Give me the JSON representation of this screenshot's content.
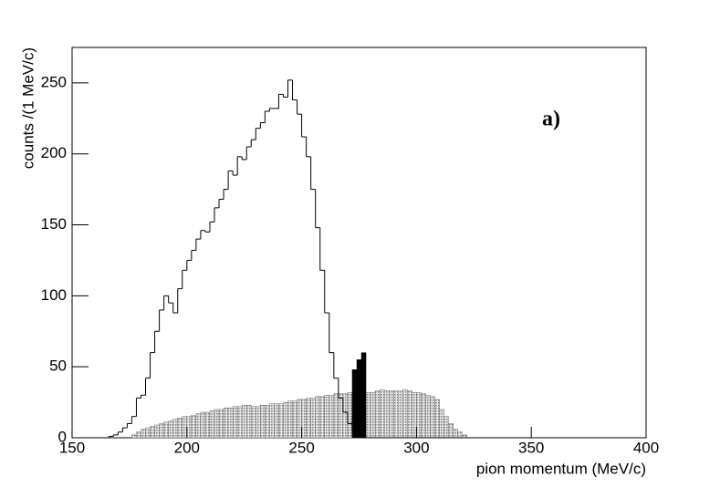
{
  "chart_data": {
    "type": "histogram",
    "x_label": "pion momentum (MeV/c)",
    "y_label": "counts /(1 MeV/c)",
    "annotation": "a)",
    "xlim": [
      150,
      400
    ],
    "ylim": [
      0,
      275
    ],
    "xticks": [
      150,
      200,
      250,
      300,
      350,
      400
    ],
    "yticks": [
      0,
      50,
      100,
      150,
      200,
      250
    ],
    "bins": [
      164,
      166,
      168,
      170,
      172,
      174,
      176,
      178,
      180,
      182,
      184,
      186,
      188,
      190,
      192,
      194,
      196,
      198,
      200,
      202,
      204,
      206,
      208,
      210,
      212,
      214,
      216,
      218,
      220,
      222,
      224,
      226,
      228,
      230,
      232,
      234,
      236,
      238,
      240,
      242,
      244,
      246,
      248,
      250,
      252,
      254,
      256,
      258,
      260,
      262,
      264,
      266,
      268,
      270,
      272,
      274,
      276,
      278,
      280,
      282,
      284,
      286,
      288,
      290,
      292,
      294,
      296,
      298,
      300,
      302,
      304,
      306,
      308,
      310,
      312,
      314,
      316,
      318,
      320,
      322
    ],
    "series": [
      {
        "style": "outline",
        "color": "#000000",
        "values": [
          0,
          1,
          2,
          4,
          7,
          10,
          15,
          28,
          30,
          42,
          60,
          75,
          90,
          100,
          95,
          88,
          105,
          118,
          125,
          132,
          140,
          146,
          145,
          152,
          162,
          168,
          175,
          188,
          185,
          198,
          196,
          205,
          210,
          218,
          222,
          230,
          232,
          232,
          242,
          240,
          252,
          238,
          228,
          212,
          198,
          175,
          148,
          118,
          88,
          60,
          42,
          28,
          18,
          10,
          5,
          2,
          0,
          0,
          0,
          0,
          0,
          0,
          0,
          0,
          0,
          0,
          0,
          0,
          0,
          0,
          0,
          0,
          0,
          0,
          0,
          0,
          0,
          0,
          0
        ]
      },
      {
        "style": "hatched",
        "color": "#b5b5b5",
        "values": [
          0,
          0,
          0,
          0,
          0,
          0,
          2,
          4,
          6,
          7,
          8,
          9,
          10,
          11,
          12,
          13,
          14,
          15,
          15,
          16,
          17,
          18,
          18,
          19,
          20,
          20,
          21,
          21,
          22,
          22,
          23,
          23,
          22,
          22,
          23,
          23,
          24,
          24,
          24,
          25,
          26,
          26,
          27,
          27,
          28,
          28,
          29,
          29,
          30,
          30,
          31,
          31,
          31,
          32,
          32,
          33,
          33,
          32,
          32,
          33,
          34,
          33,
          33,
          33,
          33,
          34,
          33,
          32,
          32,
          31,
          30,
          29,
          27,
          20,
          15,
          10,
          6,
          4,
          2
        ]
      },
      {
        "style": "filled",
        "color": "#000000",
        "values": [
          0,
          0,
          0,
          0,
          0,
          0,
          0,
          0,
          0,
          0,
          0,
          0,
          0,
          0,
          0,
          0,
          0,
          0,
          0,
          0,
          0,
          0,
          0,
          0,
          0,
          0,
          0,
          0,
          0,
          0,
          0,
          0,
          0,
          0,
          0,
          0,
          0,
          0,
          0,
          0,
          0,
          0,
          0,
          0,
          0,
          0,
          0,
          0,
          0,
          0,
          0,
          0,
          0,
          0,
          48,
          55,
          60,
          0,
          0,
          0,
          0,
          0,
          0,
          0,
          0,
          0,
          0,
          0,
          0,
          0,
          0,
          0,
          0,
          0,
          0,
          0,
          0,
          0,
          0
        ]
      }
    ]
  }
}
